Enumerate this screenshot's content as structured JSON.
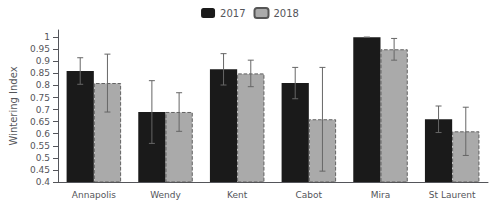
{
  "chart_data": {
    "type": "bar",
    "categories": [
      "Annapolis",
      "Wendy",
      "Kent",
      "Cabot",
      "Mira",
      "St Laurent"
    ],
    "series": [
      {
        "name": "2017",
        "color": "#1a1a1a",
        "values": [
          0.86,
          0.69,
          0.867,
          0.81,
          1.0,
          0.66
        ],
        "errors": [
          0.055,
          0.13,
          0.065,
          0.065,
          0.0,
          0.055
        ]
      },
      {
        "name": "2018",
        "color": "#aaaaaa",
        "values": [
          0.81,
          0.69,
          0.85,
          0.66,
          0.95,
          0.61
        ],
        "errors": [
          0.12,
          0.08,
          0.055,
          0.215,
          0.045,
          0.1
        ]
      }
    ],
    "ylabel": "Wintering Index",
    "ylim": [
      0.4,
      1.03
    ],
    "yticks": [
      0.4,
      0.45,
      0.5,
      0.55,
      0.6,
      0.65,
      0.7,
      0.75,
      0.8,
      0.85,
      0.9,
      0.95,
      1
    ],
    "grid": false,
    "legend": "upper center"
  }
}
